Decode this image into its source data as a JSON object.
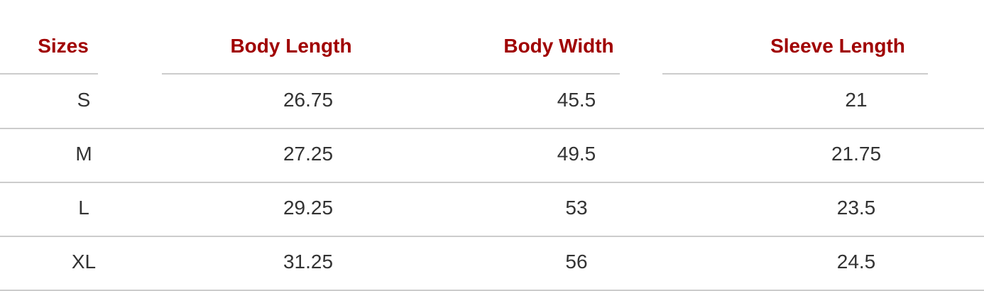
{
  "table": {
    "headers": [
      "Sizes",
      "Body Length",
      "Body Width",
      "Sleeve Length"
    ],
    "rows": [
      [
        "S",
        "26.75",
        "45.5",
        "21"
      ],
      [
        "M",
        "27.25",
        "49.5",
        "21.75"
      ],
      [
        "L",
        "29.25",
        "53",
        "23.5"
      ],
      [
        "XL",
        "31.25",
        "56",
        "24.5"
      ]
    ]
  },
  "colors": {
    "header": "#a00000",
    "text": "#333333",
    "rule": "#cccccc"
  }
}
